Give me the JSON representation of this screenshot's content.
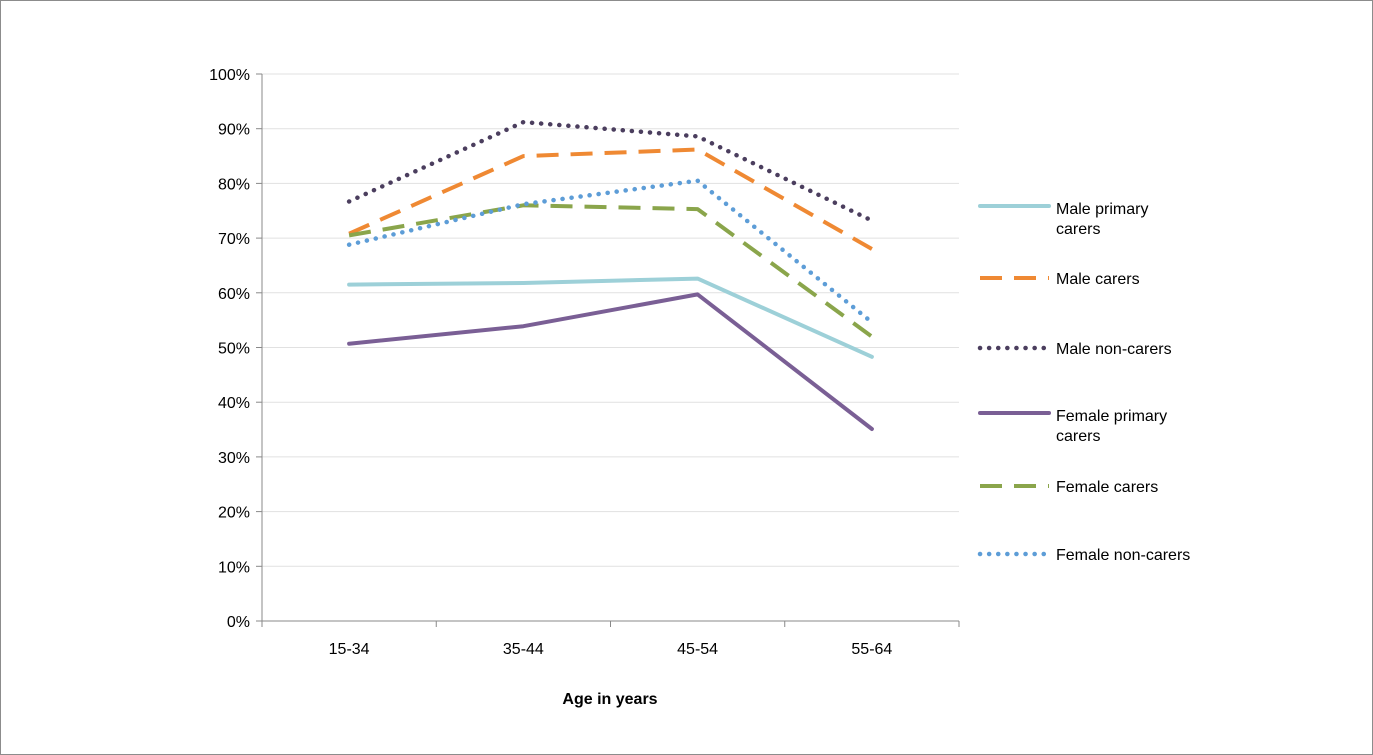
{
  "chart_data": {
    "type": "line",
    "title": "",
    "xlabel": "Age in years",
    "ylabel": "",
    "categories": [
      "15-34",
      "35-44",
      "45-54",
      "55-64"
    ],
    "ylim": [
      0,
      100
    ],
    "y_ticks": [
      0,
      10,
      20,
      30,
      40,
      50,
      60,
      70,
      80,
      90,
      100
    ],
    "y_tick_labels": [
      "0%",
      "10%",
      "20%",
      "30%",
      "40%",
      "50%",
      "60%",
      "70%",
      "80%",
      "90%",
      "100%"
    ],
    "grid": "horizontal",
    "legend_position": "right",
    "series": [
      {
        "name": "Male primary carers",
        "legend_lines": [
          "Male primary",
          "carers"
        ],
        "values": [
          61.5,
          61.8,
          62.6,
          48.3
        ],
        "color": "#9dd0d8",
        "style": "solid"
      },
      {
        "name": "Male carers",
        "legend_lines": [
          "Male carers"
        ],
        "values": [
          70.8,
          85.0,
          86.2,
          68.0
        ],
        "color": "#ef8933",
        "style": "dashed"
      },
      {
        "name": "Male non-carers",
        "legend_lines": [
          "Male non-carers"
        ],
        "values": [
          76.7,
          91.2,
          88.6,
          73.2
        ],
        "color": "#4b3e5e",
        "style": "dotted"
      },
      {
        "name": "Female primary carers",
        "legend_lines": [
          "Female primary",
          "carers"
        ],
        "values": [
          50.7,
          53.9,
          59.7,
          35.1
        ],
        "color": "#7a5f95",
        "style": "solid"
      },
      {
        "name": "Female carers",
        "legend_lines": [
          "Female carers"
        ],
        "values": [
          70.5,
          76.0,
          75.3,
          52.0
        ],
        "color": "#8aa54b",
        "style": "dashed"
      },
      {
        "name": "Female non-carers",
        "legend_lines": [
          "Female non-carers"
        ],
        "values": [
          68.8,
          76.2,
          80.5,
          54.6
        ],
        "color": "#5d9dd7",
        "style": "dotted"
      }
    ]
  }
}
